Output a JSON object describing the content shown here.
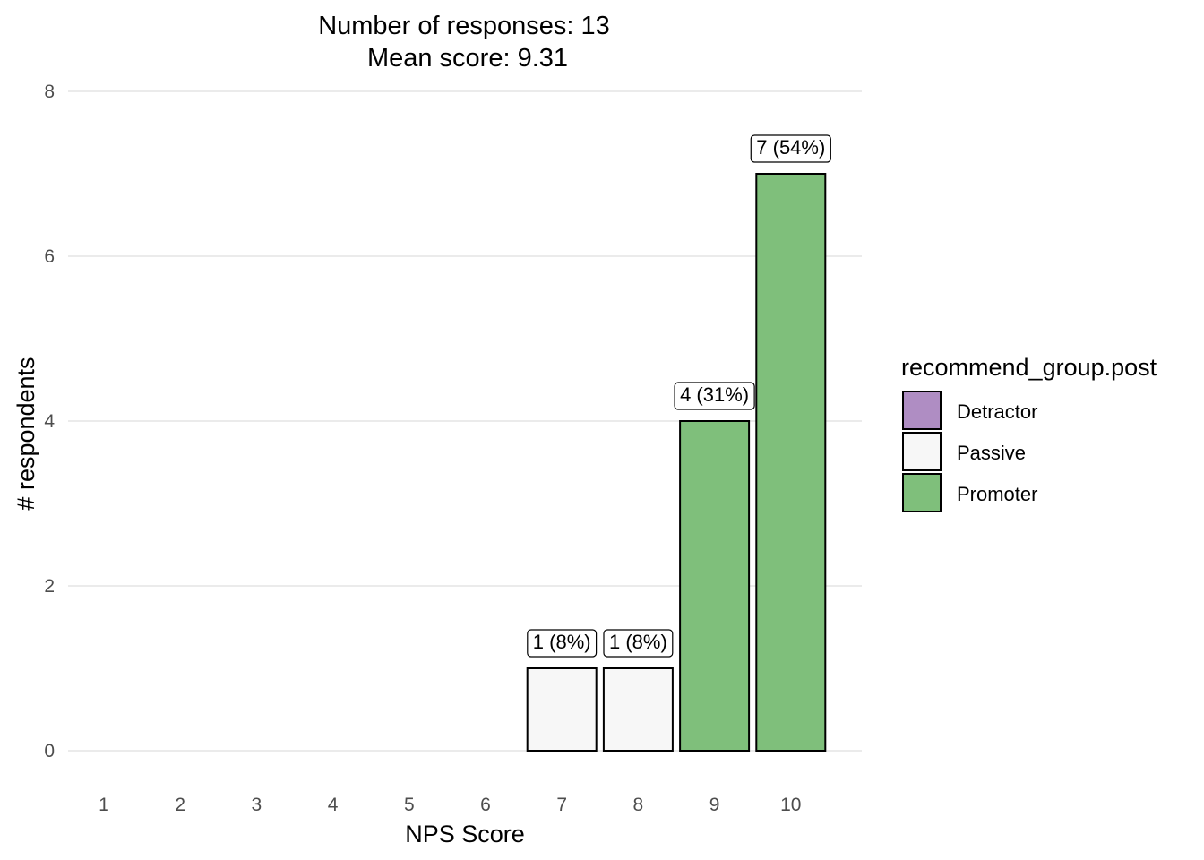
{
  "chart_data": {
    "type": "bar",
    "title_lines": [
      "Number of responses: 13",
      "Mean score: 9.31"
    ],
    "xlabel": "NPS Score",
    "ylabel": "# respondents",
    "categories": [
      "1",
      "2",
      "3",
      "4",
      "5",
      "6",
      "7",
      "8",
      "9",
      "10"
    ],
    "values": [
      0,
      0,
      0,
      0,
      0,
      0,
      1,
      1,
      4,
      7
    ],
    "groups": [
      "Detractor",
      "Detractor",
      "Detractor",
      "Detractor",
      "Detractor",
      "Detractor",
      "Passive",
      "Passive",
      "Promoter",
      "Promoter"
    ],
    "data_labels": [
      "",
      "",
      "",
      "",
      "",
      "",
      "1 (8%)",
      "1 (8%)",
      "4 (31%)",
      "7 (54%)"
    ],
    "ylim": [
      0,
      8
    ],
    "yticks": [
      0,
      2,
      4,
      6,
      8
    ],
    "grid": true,
    "legend": {
      "title": "recommend_group.post",
      "position": "right",
      "entries": [
        {
          "label": "Detractor",
          "color": "#af8dc3"
        },
        {
          "label": "Passive",
          "color": "#f7f7f7"
        },
        {
          "label": "Promoter",
          "color": "#7fbf7b"
        }
      ]
    }
  }
}
